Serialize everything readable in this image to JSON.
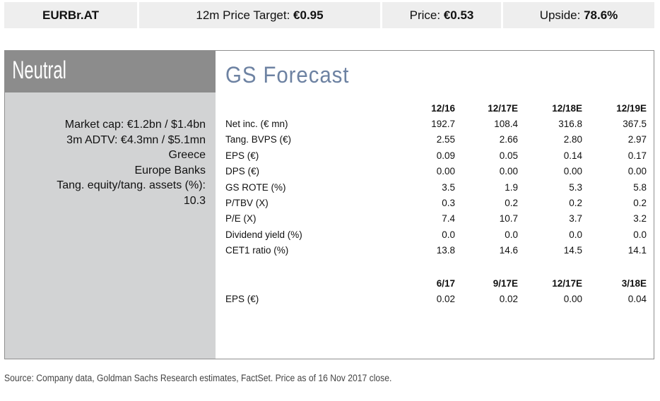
{
  "header": {
    "ticker": "EURBr.AT",
    "target_label": "12m Price Target:",
    "target_value": "€0.95",
    "price_label": "Price:",
    "price_value": "€0.53",
    "upside_label": "Upside:",
    "upside_value": "78.6%"
  },
  "rating": "Neutral",
  "meta": [
    "Market cap: €1.2bn / $1.4bn",
    "3m ADTV: €4.3mn / $5.1mn",
    "Greece",
    "Europe Banks",
    "Tang. equity/tang. assets (%):",
    "10.3"
  ],
  "forecast": {
    "title": "GS Forecast",
    "annual_columns": [
      "12/16",
      "12/17E",
      "12/18E",
      "12/19E"
    ],
    "annual_rows": [
      {
        "label": "Net inc. (€ mn)",
        "values": [
          "192.7",
          "108.4",
          "316.8",
          "367.5"
        ]
      },
      {
        "label": "Tang. BVPS (€)",
        "values": [
          "2.55",
          "2.66",
          "2.80",
          "2.97"
        ]
      },
      {
        "label": "EPS (€)",
        "values": [
          "0.09",
          "0.05",
          "0.14",
          "0.17"
        ]
      },
      {
        "label": "DPS (€)",
        "values": [
          "0.00",
          "0.00",
          "0.00",
          "0.00"
        ]
      },
      {
        "label": "GS ROTE (%)",
        "values": [
          "3.5",
          "1.9",
          "5.3",
          "5.8"
        ]
      },
      {
        "label": "P/TBV (X)",
        "values": [
          "0.3",
          "0.2",
          "0.2",
          "0.2"
        ]
      },
      {
        "label": "P/E (X)",
        "values": [
          "7.4",
          "10.7",
          "3.7",
          "3.2"
        ]
      },
      {
        "label": "Dividend yield (%)",
        "values": [
          "0.0",
          "0.0",
          "0.0",
          "0.0"
        ]
      },
      {
        "label": "CET1 ratio (%)",
        "values": [
          "13.8",
          "14.6",
          "14.5",
          "14.1"
        ]
      }
    ],
    "quarterly_columns": [
      "6/17",
      "9/17E",
      "12/17E",
      "3/18E"
    ],
    "quarterly_rows": [
      {
        "label": "EPS (€)",
        "values": [
          "0.02",
          "0.02",
          "0.00",
          "0.04"
        ]
      }
    ]
  },
  "source": "Source: Company data, Goldman Sachs Research estimates, FactSet. Price as of 16 Nov 2017 close."
}
